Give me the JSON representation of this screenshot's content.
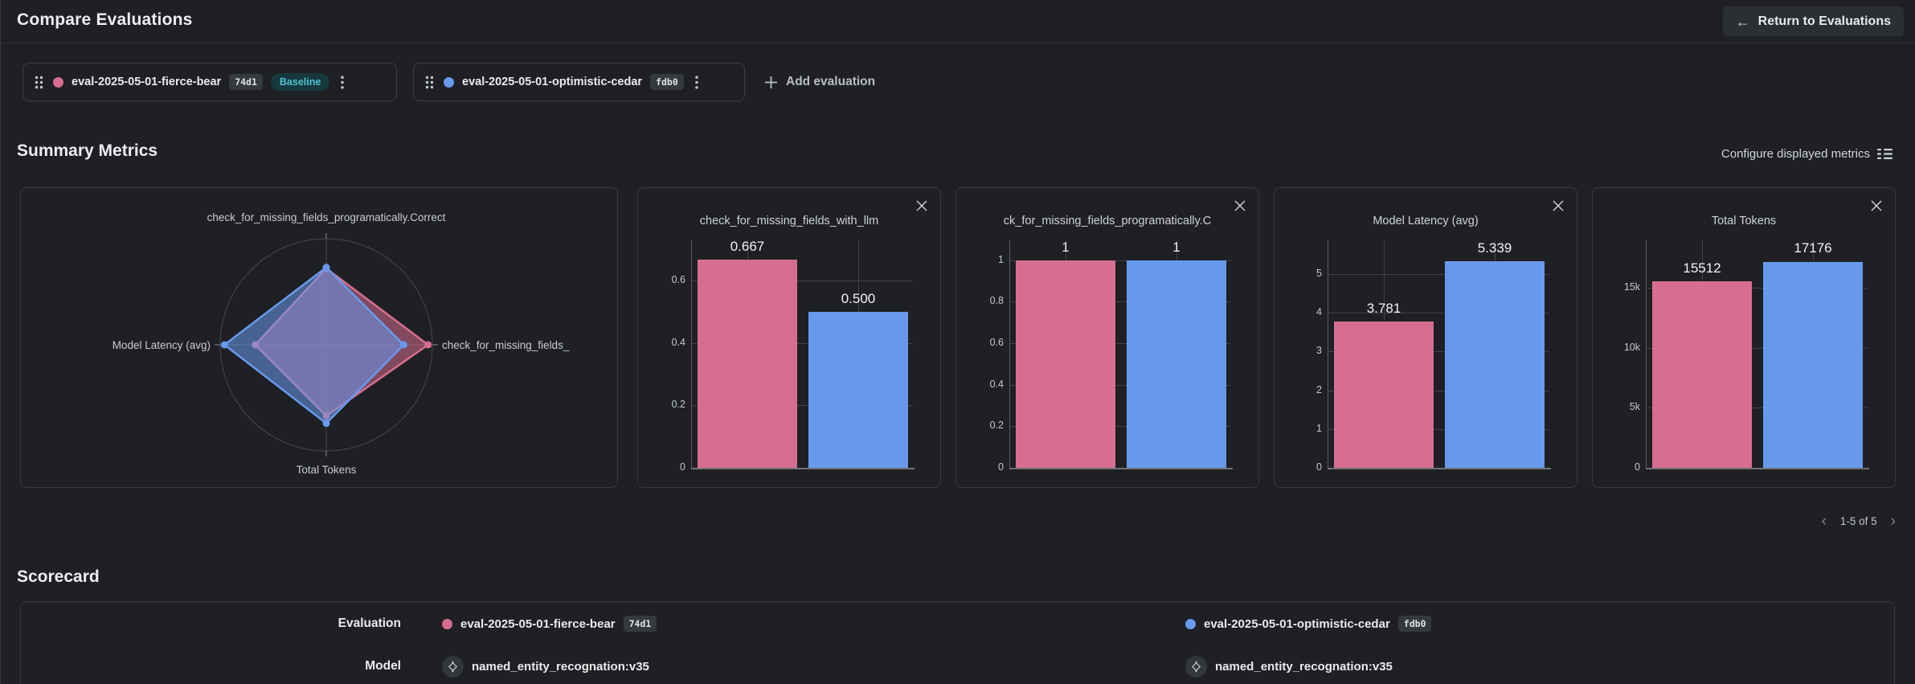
{
  "colors": {
    "pink": "#d76e91",
    "blue": "#689aec",
    "baseline_badge_text": "#4fc3d0",
    "page_background": "#1e2023"
  },
  "header": {
    "title": "Compare Evaluations",
    "return_label": "Return to Evaluations"
  },
  "evaluations": [
    {
      "name": "eval-2025-05-01-fierce-bear",
      "id": "74d1",
      "tag": "Baseline",
      "color": "#d76e91"
    },
    {
      "name": "eval-2025-05-01-optimistic-cedar",
      "id": "fdb0",
      "color": "#689aec"
    }
  ],
  "add_evaluation_label": "Add evaluation",
  "summary": {
    "title": "Summary Metrics",
    "configure_label": "Configure displayed metrics",
    "pagination": "1-5 of 5"
  },
  "scorecard": {
    "title": "Scorecard",
    "labels": {
      "evaluation": "Evaluation",
      "model": "Model"
    },
    "models": [
      "named_entity_recognation:v35",
      "named_entity_recognation:v35"
    ]
  },
  "chart_data": [
    {
      "type": "radar",
      "axes": [
        "check_for_missing_fields_programatically.Correct",
        "check_for_missing_fields_",
        "Total Tokens",
        "Model Latency (avg)"
      ],
      "series": [
        {
          "name": "eval-2025-05-01-fierce-bear",
          "color": "#d76e91",
          "values": [
            1,
            0.667,
            15512,
            3.781
          ],
          "radii": [
            0.72,
            0.96,
            0.67,
            0.67
          ]
        },
        {
          "name": "eval-2025-05-01-optimistic-cedar",
          "color": "#689aec",
          "values": [
            1,
            0.5,
            17176,
            5.339
          ],
          "radii": [
            0.73,
            0.73,
            0.74,
            0.96
          ]
        }
      ]
    },
    {
      "type": "bar",
      "title": "check_for_missing_fields_with_llm",
      "categories": [
        "eval-2025-05-01-fierce-bear",
        "eval-2025-05-01-optimistic-cedar"
      ],
      "values": [
        0.667,
        0.5
      ],
      "value_labels": [
        "0.667",
        "0.500"
      ],
      "colors": [
        "#d76e91",
        "#689aec"
      ],
      "ylim": [
        0,
        0.73
      ],
      "ticks": [
        [
          0,
          "0"
        ],
        [
          0.2,
          "0.2"
        ],
        [
          0.4,
          "0.4"
        ],
        [
          0.6,
          "0.6"
        ]
      ]
    },
    {
      "type": "bar",
      "title": "ck_for_missing_fields_programatically.C",
      "categories": [
        "eval-2025-05-01-fierce-bear",
        "eval-2025-05-01-optimistic-cedar"
      ],
      "values": [
        1,
        1
      ],
      "value_labels": [
        "1",
        "1"
      ],
      "colors": [
        "#d76e91",
        "#689aec"
      ],
      "ylim": [
        0,
        1.095
      ],
      "ticks": [
        [
          0,
          "0"
        ],
        [
          0.2,
          "0.2"
        ],
        [
          0.4,
          "0.4"
        ],
        [
          0.6,
          "0.6"
        ],
        [
          0.8,
          "0.8"
        ],
        [
          1,
          "1"
        ]
      ]
    },
    {
      "type": "bar",
      "title": "Model Latency (avg)",
      "categories": [
        "eval-2025-05-01-fierce-bear",
        "eval-2025-05-01-optimistic-cedar"
      ],
      "values": [
        3.781,
        5.339
      ],
      "value_labels": [
        "3.781",
        "5.339"
      ],
      "colors": [
        "#d76e91",
        "#689aec"
      ],
      "ylim": [
        0,
        5.87
      ],
      "ticks": [
        [
          0,
          "0"
        ],
        [
          1,
          "1"
        ],
        [
          2,
          "2"
        ],
        [
          3,
          "3"
        ],
        [
          4,
          "4"
        ],
        [
          5,
          "5"
        ]
      ]
    },
    {
      "type": "bar",
      "title": "Total Tokens",
      "categories": [
        "eval-2025-05-01-fierce-bear",
        "eval-2025-05-01-optimistic-cedar"
      ],
      "values": [
        15512,
        17176
      ],
      "value_labels": [
        "15512",
        "17176"
      ],
      "colors": [
        "#d76e91",
        "#689aec"
      ],
      "ylim": [
        0,
        18950
      ],
      "ticks": [
        [
          0,
          "0"
        ],
        [
          5000,
          "5k"
        ],
        [
          10000,
          "10k"
        ],
        [
          15000,
          "15k"
        ]
      ]
    }
  ]
}
